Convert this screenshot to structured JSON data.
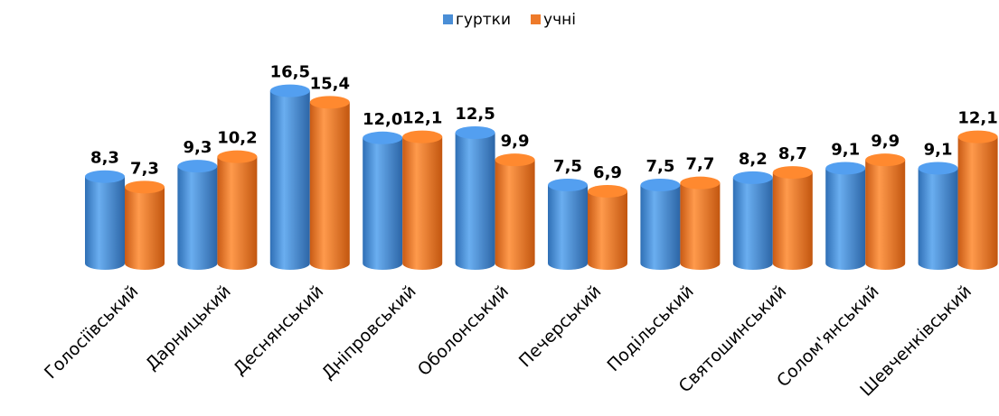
{
  "chart_data": {
    "type": "bar",
    "categories": [
      "Голосіївський",
      "Дарницький",
      "Деснянський",
      "Дніпровський",
      "Оболонський",
      "Печерський",
      "Подільський",
      "Святошинський",
      "Солом'янський",
      "Шевченківський"
    ],
    "series": [
      {
        "name": "гуртки",
        "color": "#4a8ed6",
        "values": [
          8.3,
          9.3,
          16.5,
          12.0,
          12.5,
          7.5,
          7.5,
          8.2,
          9.1,
          9.1
        ],
        "value_labels": [
          "8,3",
          "9,3",
          "16,5",
          "12,0",
          "12,5",
          "7,5",
          "7,5",
          "8,2",
          "9,1",
          "9,1"
        ]
      },
      {
        "name": "учні",
        "color": "#ee7a2a",
        "values": [
          7.3,
          10.2,
          15.4,
          12.1,
          9.9,
          6.9,
          7.7,
          8.7,
          9.9,
          12.1
        ],
        "value_labels": [
          "7,3",
          "10,2",
          "15,4",
          "12,1",
          "9,9",
          "6,9",
          "7,7",
          "8,7",
          "9,9",
          "12,1"
        ]
      }
    ],
    "legend": "top"
  }
}
